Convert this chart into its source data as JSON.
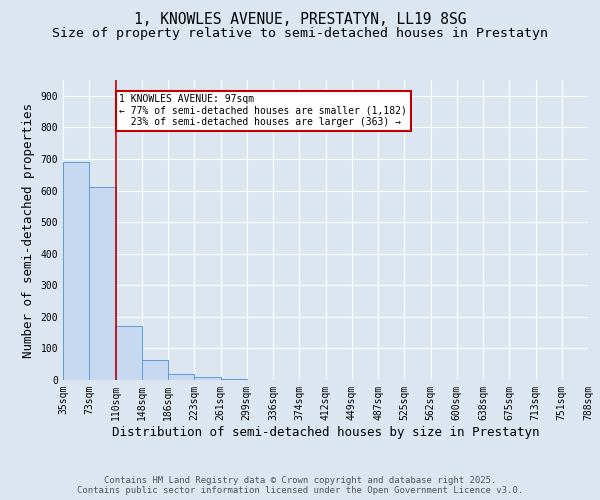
{
  "title_line1": "1, KNOWLES AVENUE, PRESTATYN, LL19 8SG",
  "title_line2": "Size of property relative to semi-detached houses in Prestatyn",
  "xlabel": "Distribution of semi-detached houses by size in Prestatyn",
  "ylabel": "Number of semi-detached properties",
  "bins": [
    "35sqm",
    "73sqm",
    "110sqm",
    "148sqm",
    "186sqm",
    "223sqm",
    "261sqm",
    "299sqm",
    "336sqm",
    "374sqm",
    "412sqm",
    "449sqm",
    "487sqm",
    "525sqm",
    "562sqm",
    "600sqm",
    "638sqm",
    "675sqm",
    "713sqm",
    "751sqm",
    "788sqm"
  ],
  "bar_values": [
    690,
    610,
    170,
    62,
    18,
    8,
    3,
    0,
    0,
    0,
    0,
    0,
    0,
    0,
    0,
    0,
    0,
    0,
    0,
    0
  ],
  "bar_color": "#c6d9f0",
  "bar_edge_color": "#5b9bd5",
  "property_line_x": 2,
  "property_line_color": "#c00000",
  "annotation_text": "1 KNOWLES AVENUE: 97sqm\n← 77% of semi-detached houses are smaller (1,182)\n  23% of semi-detached houses are larger (363) →",
  "annotation_box_color": "#ffffff",
  "annotation_box_edge": "#c00000",
  "ylim": [
    0,
    950
  ],
  "yticks": [
    0,
    100,
    200,
    300,
    400,
    500,
    600,
    700,
    800,
    900
  ],
  "background_color": "#dce6f1",
  "footer_text": "Contains HM Land Registry data © Crown copyright and database right 2025.\nContains public sector information licensed under the Open Government Licence v3.0.",
  "title_fontsize": 10.5,
  "subtitle_fontsize": 9.5,
  "axis_label_fontsize": 9,
  "tick_fontsize": 7,
  "annotation_fontsize": 7,
  "footer_fontsize": 6.5
}
